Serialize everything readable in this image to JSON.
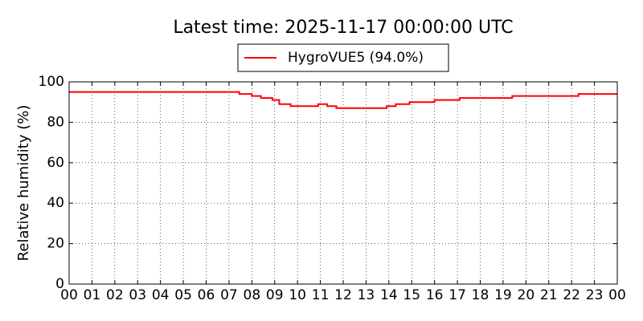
{
  "chart_data": {
    "type": "line",
    "title": "Latest time: 2025-11-17 00:00:00 UTC",
    "y_label": "Relative humidity (%)",
    "x": [
      0,
      7.45,
      7.45,
      8.0,
      8.0,
      8.4,
      8.4,
      8.9,
      8.9,
      9.2,
      9.2,
      9.7,
      9.7,
      10.9,
      10.9,
      11.3,
      11.3,
      11.7,
      11.7,
      13.9,
      13.9,
      14.3,
      14.3,
      14.9,
      14.9,
      16.0,
      16.0,
      17.1,
      17.1,
      19.4,
      19.4,
      22.3,
      22.3,
      24
    ],
    "series": [
      {
        "name": "HygroVUE5 (94.0%)",
        "color": "#ff0000",
        "values": [
          95,
          95,
          94,
          94,
          93,
          93,
          92,
          92,
          91,
          91,
          89,
          89,
          88,
          88,
          89,
          89,
          88,
          88,
          87,
          87,
          88,
          88,
          89,
          89,
          90,
          90,
          91,
          91,
          92,
          92,
          93,
          93,
          94,
          94
        ]
      }
    ],
    "xlim": [
      0,
      24
    ],
    "xticks": [
      {
        "value": 0,
        "label": "00"
      },
      {
        "value": 1,
        "label": "01"
      },
      {
        "value": 2,
        "label": "02"
      },
      {
        "value": 3,
        "label": "03"
      },
      {
        "value": 4,
        "label": "04"
      },
      {
        "value": 5,
        "label": "05"
      },
      {
        "value": 6,
        "label": "06"
      },
      {
        "value": 7,
        "label": "07"
      },
      {
        "value": 8,
        "label": "08"
      },
      {
        "value": 9,
        "label": "09"
      },
      {
        "value": 10,
        "label": "10"
      },
      {
        "value": 11,
        "label": "11"
      },
      {
        "value": 12,
        "label": "12"
      },
      {
        "value": 13,
        "label": "13"
      },
      {
        "value": 14,
        "label": "14"
      },
      {
        "value": 15,
        "label": "15"
      },
      {
        "value": 16,
        "label": "16"
      },
      {
        "value": 17,
        "label": "17"
      },
      {
        "value": 18,
        "label": "18"
      },
      {
        "value": 19,
        "label": "19"
      },
      {
        "value": 20,
        "label": "20"
      },
      {
        "value": 21,
        "label": "21"
      },
      {
        "value": 22,
        "label": "22"
      },
      {
        "value": 23,
        "label": "23"
      },
      {
        "value": 24,
        "label": "00"
      }
    ],
    "ylim": [
      0,
      100
    ],
    "yticks": [
      0,
      20,
      40,
      60,
      80,
      100
    ],
    "grid": true
  }
}
